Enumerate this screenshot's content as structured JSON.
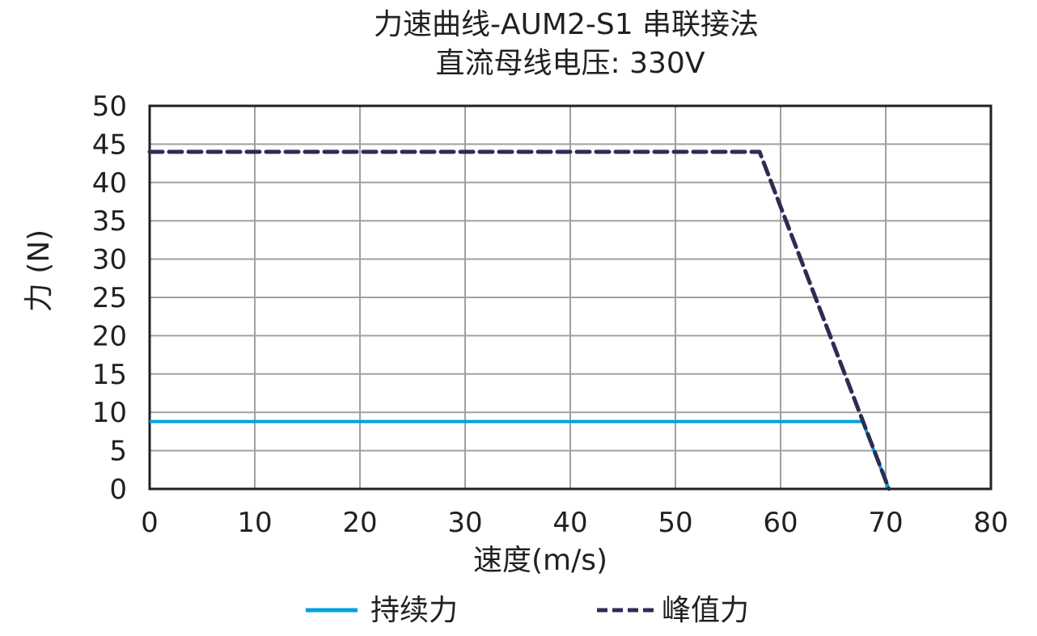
{
  "chart_data": {
    "type": "line",
    "title": "力速曲线-AUM2-S1 串联接法",
    "subtitle": "直流母线电压: 330V",
    "xlabel": "速度(m/s)",
    "ylabel": "力 (N)",
    "xlim": [
      0,
      80
    ],
    "ylim": [
      0,
      50
    ],
    "xticks": [
      0,
      10,
      20,
      30,
      40,
      50,
      60,
      70,
      80
    ],
    "yticks": [
      0,
      5,
      10,
      15,
      20,
      25,
      30,
      35,
      40,
      45,
      50
    ],
    "grid": true,
    "legend_position": "bottom",
    "series": [
      {
        "name": "持续力",
        "style": "solid",
        "color": "#00a0e0",
        "x": [
          0,
          67.8,
          70.3
        ],
        "y": [
          8.8,
          8.8,
          0
        ]
      },
      {
        "name": "峰值力",
        "style": "dashed",
        "color": "#2b2d52",
        "x": [
          0,
          58,
          70.3
        ],
        "y": [
          44,
          44,
          0
        ]
      }
    ]
  },
  "legend": {
    "continuous": "持续力",
    "peak": "峰值力"
  }
}
